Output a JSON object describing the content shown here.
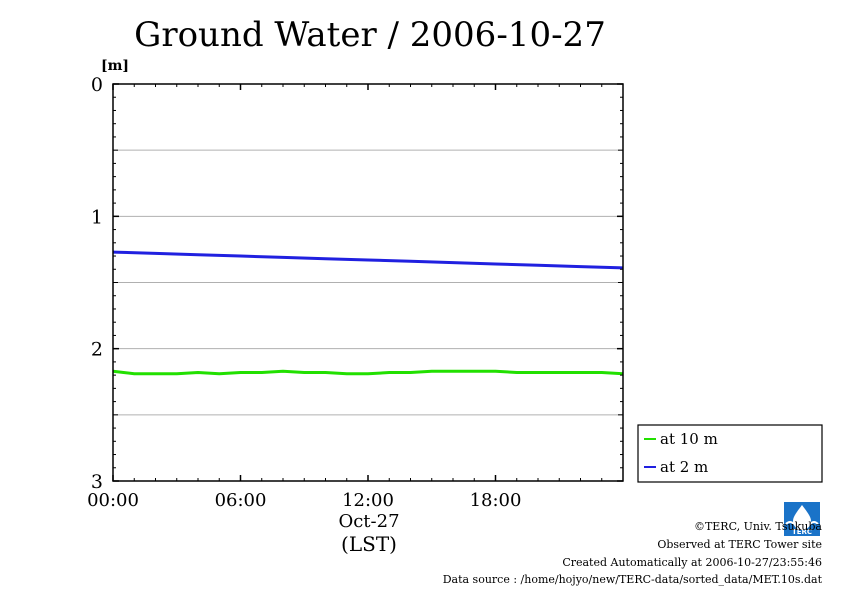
{
  "chart_data": {
    "type": "line",
    "title": "Ground Water / 2006-10-27",
    "ylabel": "[m]",
    "xlabel": "Oct-27",
    "xlabel2": "(LST)",
    "ylim": [
      0,
      3
    ],
    "y_inverted": true,
    "xlim": [
      0,
      24
    ],
    "x_tick_labels": [
      "00:00",
      "06:00",
      "12:00",
      "18:00"
    ],
    "x_tick_values": [
      0,
      6,
      12,
      18
    ],
    "y_tick_labels": [
      "0",
      "1",
      "2",
      "3"
    ],
    "y_tick_values": [
      0,
      1,
      2,
      3
    ],
    "grid": "horizontal dashed at every 0.5 m",
    "legend_position": "right, lower",
    "series": [
      {
        "name": "at 10 m",
        "color": "#22e000",
        "x": [
          0,
          0.5,
          1,
          2,
          3,
          4,
          5,
          6,
          7,
          8,
          9,
          10,
          11,
          12,
          13,
          14,
          15,
          16,
          17,
          18,
          19,
          20,
          21,
          22,
          23,
          24
        ],
        "values": [
          2.17,
          2.18,
          2.19,
          2.19,
          2.19,
          2.18,
          2.19,
          2.18,
          2.18,
          2.17,
          2.18,
          2.18,
          2.19,
          2.19,
          2.18,
          2.18,
          2.17,
          2.17,
          2.17,
          2.17,
          2.18,
          2.18,
          2.18,
          2.18,
          2.18,
          2.19
        ]
      },
      {
        "name": "at 2 m",
        "color": "#2020e0",
        "x": [
          0,
          2,
          4,
          6,
          8,
          10,
          12,
          14,
          16,
          18,
          20,
          22,
          24
        ],
        "values": [
          1.27,
          1.28,
          1.29,
          1.3,
          1.31,
          1.32,
          1.33,
          1.34,
          1.35,
          1.36,
          1.37,
          1.38,
          1.39
        ]
      }
    ]
  },
  "footer": {
    "copyright": "©TERC, Univ. Tsukuba",
    "observed": "Observed at TERC Tower site",
    "created": "Created Automatically at 2006-10-27/23:55:46",
    "source": "Data source : /home/hojyo/new/TERC-data/sorted_data/MET.10s.dat"
  },
  "logo": {
    "icon": "terc-water-drop-logo",
    "color": "#1a73c8",
    "text": "TERC"
  }
}
